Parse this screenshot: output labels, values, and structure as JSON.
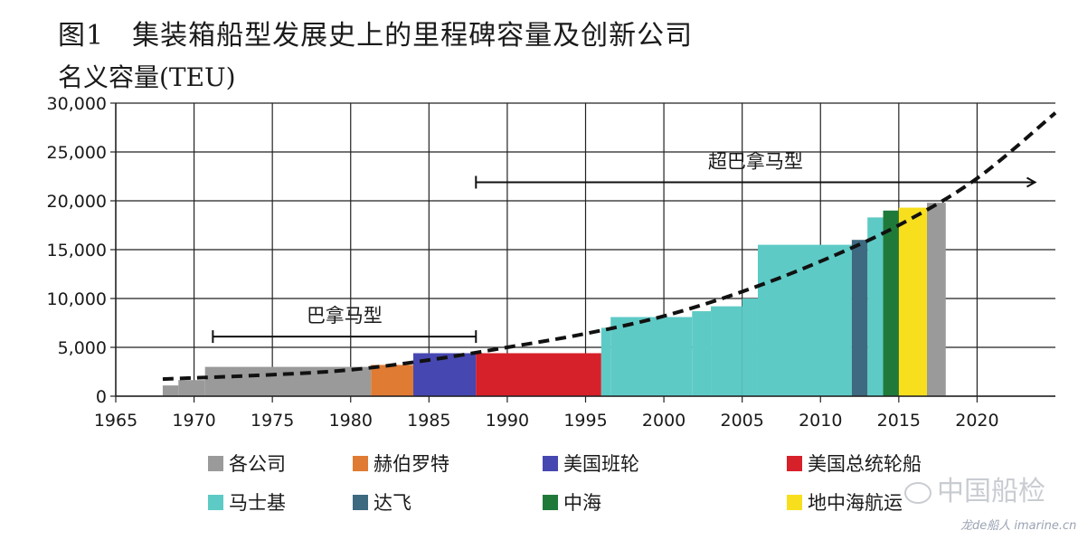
{
  "chart_data": {
    "type": "area",
    "title": "图1　集装箱船型发展史上的里程碑容量及创新公司",
    "ylabel": "名义容量(TEU)",
    "xlabel": "",
    "xlim": [
      1965,
      2025
    ],
    "ylim": [
      0,
      30000
    ],
    "x_ticks": [
      1965,
      1970,
      1975,
      1980,
      1985,
      1990,
      1995,
      2000,
      2005,
      2010,
      2015,
      2020
    ],
    "y_ticks": [
      0,
      5000,
      10000,
      15000,
      20000,
      25000,
      30000
    ],
    "y_tick_labels": [
      "0",
      "5,000",
      "10,000",
      "15,000",
      "20,000",
      "25,000",
      "30,000"
    ],
    "grid": true,
    "legend_position": "bottom",
    "series": [
      {
        "name": "各公司",
        "color": "#9a9a9a",
        "steps": [
          [
            1968.0,
            1969.0,
            1100
          ],
          [
            1969.0,
            1970.7,
            1650
          ],
          [
            1970.7,
            1981.3,
            3000
          ],
          [
            2016.8,
            2018.0,
            19800
          ]
        ]
      },
      {
        "name": "赫伯罗特",
        "color": "#e07b33",
        "steps": [
          [
            1981.3,
            1984.0,
            3200
          ]
        ]
      },
      {
        "name": "美国班轮",
        "color": "#4747b1",
        "steps": [
          [
            1984.0,
            1988.0,
            4400
          ]
        ]
      },
      {
        "name": "美国总统轮船",
        "color": "#d6202a",
        "steps": [
          [
            1988.0,
            1996.0,
            4400
          ]
        ]
      },
      {
        "name": "马士基",
        "color": "#5ecac5",
        "steps": [
          [
            1996.0,
            1996.6,
            7000
          ],
          [
            1996.6,
            2001.8,
            8100
          ],
          [
            2001.8,
            2003.0,
            8700
          ],
          [
            2003.0,
            2005.0,
            9200
          ],
          [
            2005.0,
            2006.0,
            10000
          ],
          [
            2006.0,
            2012.0,
            15500
          ],
          [
            2013.0,
            2014.0,
            18300
          ]
        ]
      },
      {
        "name": "达飞",
        "color": "#3d6a80",
        "steps": [
          [
            2012.0,
            2013.0,
            16000
          ]
        ]
      },
      {
        "name": "中海",
        "color": "#1f7a3a",
        "steps": [
          [
            2014.0,
            2015.0,
            19000
          ]
        ]
      },
      {
        "name": "地中海航运",
        "color": "#f7df1e",
        "steps": [
          [
            2015.0,
            2016.8,
            19300
          ]
        ]
      }
    ],
    "trend": {
      "style": "dashed",
      "color": "#111111",
      "points": [
        [
          1968,
          1750
        ],
        [
          1975,
          2200
        ],
        [
          1980,
          2700
        ],
        [
          1985,
          3700
        ],
        [
          1990,
          5000
        ],
        [
          1995,
          6400
        ],
        [
          2000,
          8200
        ],
        [
          2005,
          10700
        ],
        [
          2010,
          13800
        ],
        [
          2015,
          17500
        ],
        [
          2020,
          22300
        ],
        [
          2025,
          29000
        ]
      ]
    },
    "annotations": [
      {
        "label": "巴拿马型",
        "from": 1971.2,
        "to": 1988.0,
        "y": 6100,
        "arrow_end": false
      },
      {
        "label": "超巴拿马型",
        "from": 1988.0,
        "to": 2023.7,
        "y": 21900,
        "arrow_end": true
      }
    ]
  },
  "watermark": {
    "text": "中国船检",
    "icon": "chat-bubble-icon"
  },
  "site": {
    "text": "龙de船人 imarine.cn"
  }
}
